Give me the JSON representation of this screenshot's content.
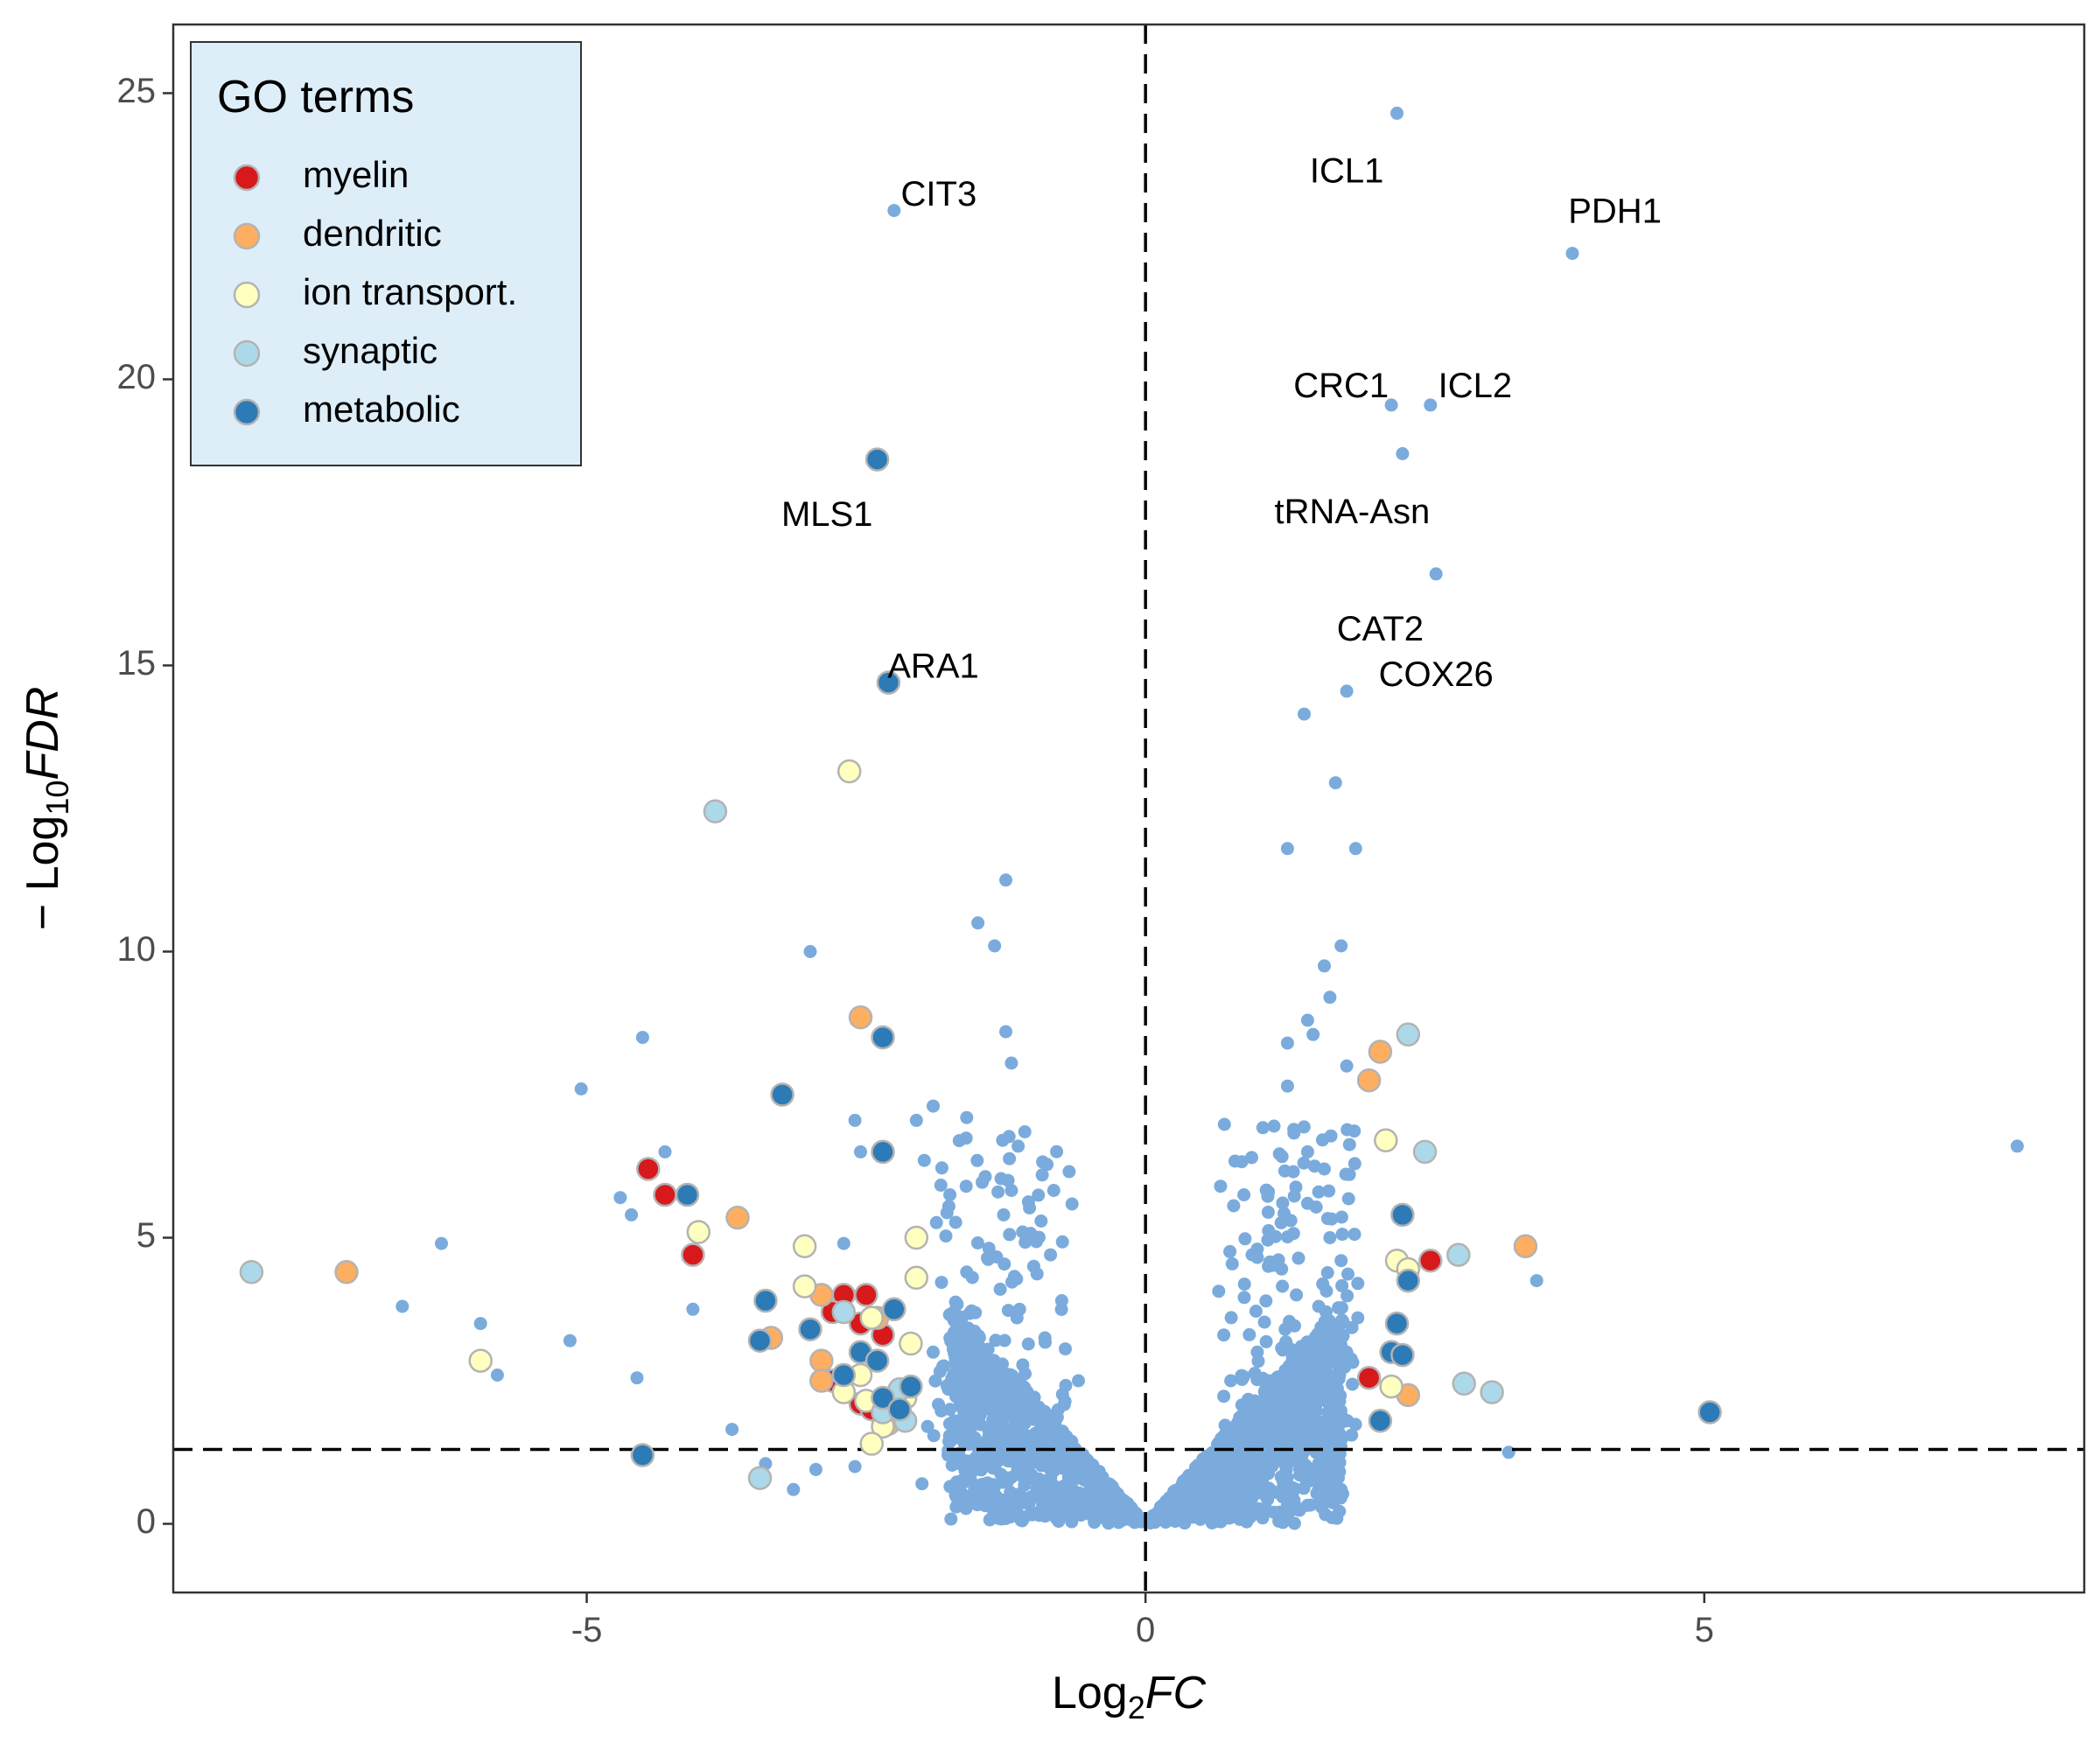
{
  "chart_data": {
    "type": "scatter",
    "title": "",
    "xlabel": {
      "base": "Log",
      "sub": "2",
      "italic": "FC"
    },
    "ylabel": {
      "prefix": "− Log",
      "sub": "10",
      "italic": "FDR"
    },
    "xlim": [
      -8.7,
      8.4
    ],
    "ylim": [
      -1.2,
      26.2
    ],
    "x_ticks": [
      -5,
      0,
      5
    ],
    "x_tick_labels": [
      "-5",
      "0",
      "5"
    ],
    "y_ticks": [
      0,
      5,
      10,
      15,
      20,
      25
    ],
    "y_tick_labels": [
      "0",
      "5",
      "10",
      "15",
      "20",
      "25"
    ],
    "grid": false,
    "thresholds": {
      "vertical_x": 0,
      "horizontal_y": 1.3
    },
    "legend": {
      "title": "GO terms",
      "position": "top-left",
      "background": "#ddeef8",
      "items": [
        {
          "name": "myelin",
          "color": "#d7191c"
        },
        {
          "name": "dendritic",
          "color": "#fdae61"
        },
        {
          "name": "ion transport.",
          "color": "#ffffbf"
        },
        {
          "name": "synaptic",
          "color": "#abd9e9"
        },
        {
          "name": "metabolic",
          "color": "#2c7bb6"
        }
      ]
    },
    "background_color": "#7aabdc",
    "background_points": [
      [
        2.25,
        24.65
      ],
      [
        -2.25,
        22.95
      ],
      [
        3.82,
        22.2
      ],
      [
        2.2,
        19.55
      ],
      [
        2.55,
        19.55
      ],
      [
        2.3,
        18.7
      ],
      [
        2.6,
        16.6
      ],
      [
        1.8,
        14.55
      ],
      [
        1.42,
        14.15
      ],
      [
        1.7,
        12.95
      ],
      [
        1.27,
        11.8
      ],
      [
        1.88,
        11.8
      ],
      [
        1.75,
        10.1
      ],
      [
        1.6,
        9.75
      ],
      [
        1.65,
        9.2
      ],
      [
        1.45,
        8.8
      ],
      [
        1.5,
        8.55
      ],
      [
        1.27,
        8.4
      ],
      [
        1.8,
        8.0
      ],
      [
        1.27,
        7.65
      ],
      [
        1.15,
        6.95
      ],
      [
        1.45,
        6.5
      ],
      [
        1.6,
        6.2
      ],
      [
        0.95,
        6.4
      ],
      [
        1.55,
        5.8
      ],
      [
        1.1,
        5.8
      ],
      [
        0.88,
        5.75
      ],
      [
        1.45,
        5.6
      ],
      [
        1.3,
        5.3
      ],
      [
        1.65,
        5.0
      ],
      [
        1.0,
        4.8
      ],
      [
        1.75,
        4.6
      ],
      [
        1.9,
        4.2
      ],
      [
        1.1,
        4.5
      ],
      [
        1.35,
        4.0
      ],
      [
        1.55,
        3.8
      ],
      [
        1.9,
        3.6
      ],
      [
        1.25,
        3.4
      ],
      [
        0.7,
        3.3
      ],
      [
        1.8,
        3.0
      ],
      [
        1.4,
        2.8
      ],
      [
        1.0,
        3.0
      ],
      [
        1.7,
        2.4
      ],
      [
        1.5,
        2.2
      ],
      [
        1.1,
        2.5
      ],
      [
        1.8,
        1.8
      ],
      [
        1.45,
        1.7
      ],
      [
        1.4,
        1.2
      ],
      [
        1.75,
        0.6
      ],
      [
        1.15,
        0.2
      ],
      [
        0.75,
        0.1
      ],
      [
        7.8,
        6.6
      ],
      [
        3.5,
        4.25
      ],
      [
        3.25,
        1.25
      ],
      [
        -1.25,
        11.25
      ],
      [
        -1.5,
        10.5
      ],
      [
        -1.35,
        10.1
      ],
      [
        -3.0,
        10.0
      ],
      [
        -1.25,
        8.6
      ],
      [
        -1.2,
        8.05
      ],
      [
        -1.9,
        7.3
      ],
      [
        -1.6,
        7.1
      ],
      [
        -2.6,
        7.05
      ],
      [
        -2.05,
        7.05
      ],
      [
        -1.08,
        6.85
      ],
      [
        -1.14,
        6.6
      ],
      [
        -2.55,
        6.5
      ],
      [
        -1.98,
        6.35
      ],
      [
        -1.23,
        6.0
      ],
      [
        -1.75,
        5.75
      ],
      [
        -1.32,
        5.8
      ],
      [
        -1.27,
        5.4
      ],
      [
        -4.5,
        8.5
      ],
      [
        -5.05,
        7.6
      ],
      [
        -4.3,
        6.5
      ],
      [
        -4.7,
        5.7
      ],
      [
        -4.6,
        5.4
      ],
      [
        -6.3,
        4.9
      ],
      [
        -6.65,
        3.8
      ],
      [
        -4.05,
        3.75
      ],
      [
        -5.95,
        3.5
      ],
      [
        -5.8,
        2.6
      ],
      [
        -5.15,
        3.2
      ],
      [
        -4.55,
        2.55
      ],
      [
        -3.7,
        1.65
      ],
      [
        -3.4,
        1.05
      ],
      [
        -2.95,
        0.95
      ],
      [
        -3.15,
        0.6
      ],
      [
        -2.7,
        4.9
      ],
      [
        -1.9,
        3.0
      ],
      [
        -1.5,
        3.2
      ],
      [
        -2.0,
        0.7
      ],
      [
        -1.7,
        0.5
      ],
      [
        -1.2,
        0.3
      ],
      [
        -0.8,
        0.1
      ],
      [
        -1.1,
        5.1
      ],
      [
        -1.0,
        4.5
      ],
      [
        -0.75,
        3.9
      ],
      [
        -0.6,
        2.5
      ],
      [
        -1.3,
        4.1
      ],
      [
        -0.85,
        4.7
      ],
      [
        -1.6,
        4.4
      ],
      [
        -1.15,
        3.6
      ],
      [
        -0.9,
        3.25
      ],
      [
        -1.75,
        2.0
      ],
      [
        -1.45,
        1.15
      ],
      [
        -2.6,
        1.0
      ],
      [
        -1.95,
        1.7
      ]
    ],
    "go_points": [
      {
        "term": "myelin",
        "points": [
          [
            -4.45,
            6.2
          ],
          [
            -4.3,
            5.75
          ],
          [
            -4.05,
            4.7
          ],
          [
            -2.7,
            4.0
          ],
          [
            -2.5,
            4.0
          ],
          [
            -2.8,
            3.7
          ],
          [
            -2.55,
            3.5
          ],
          [
            -2.35,
            3.3
          ],
          [
            -2.8,
            2.5
          ],
          [
            -2.55,
            2.1
          ],
          [
            -2.45,
            2.0
          ],
          [
            2.55,
            4.6
          ],
          [
            2.0,
            2.55
          ]
        ]
      },
      {
        "term": "dendritic",
        "points": [
          [
            -7.15,
            4.4
          ],
          [
            -3.65,
            5.35
          ],
          [
            -2.55,
            8.85
          ],
          [
            -3.35,
            3.25
          ],
          [
            -2.9,
            2.85
          ],
          [
            -2.9,
            2.5
          ],
          [
            -2.4,
            3.6
          ],
          [
            -2.3,
            1.75
          ],
          [
            2.1,
            8.25
          ],
          [
            2.0,
            7.75
          ],
          [
            3.4,
            4.85
          ],
          [
            2.35,
            2.25
          ],
          [
            -2.9,
            4.0
          ]
        ]
      },
      {
        "term": "ion transport.",
        "points": [
          [
            -2.65,
            13.15
          ],
          [
            -4.0,
            5.1
          ],
          [
            -3.05,
            4.85
          ],
          [
            -2.05,
            5.0
          ],
          [
            -3.05,
            4.15
          ],
          [
            -2.05,
            4.3
          ],
          [
            -2.45,
            3.6
          ],
          [
            -2.1,
            3.15
          ],
          [
            -5.95,
            2.85
          ],
          [
            -2.7,
            2.3
          ],
          [
            -2.5,
            2.15
          ],
          [
            -2.25,
            2.05
          ],
          [
            -2.35,
            1.7
          ],
          [
            -2.45,
            1.4
          ],
          [
            2.15,
            6.7
          ],
          [
            2.25,
            4.6
          ],
          [
            2.35,
            4.45
          ],
          [
            2.2,
            2.4
          ],
          [
            -2.55,
            2.6
          ],
          [
            -2.15,
            2.2
          ]
        ]
      },
      {
        "term": "synaptic",
        "points": [
          [
            -8.0,
            4.4
          ],
          [
            -3.85,
            12.45
          ],
          [
            -2.7,
            3.7
          ],
          [
            -3.45,
            0.8
          ],
          [
            2.35,
            8.55
          ],
          [
            2.5,
            6.5
          ],
          [
            2.8,
            4.7
          ],
          [
            2.85,
            2.45
          ],
          [
            3.1,
            2.3
          ],
          [
            -2.2,
            2.35
          ],
          [
            -2.35,
            1.95
          ],
          [
            -2.15,
            1.8
          ]
        ]
      },
      {
        "term": "metabolic",
        "points": [
          [
            -2.4,
            18.6
          ],
          [
            -2.3,
            14.7
          ],
          [
            -2.35,
            8.5
          ],
          [
            -3.25,
            7.5
          ],
          [
            -2.35,
            6.5
          ],
          [
            -4.1,
            5.75
          ],
          [
            -3.4,
            3.9
          ],
          [
            -3.45,
            3.2
          ],
          [
            -3.0,
            3.4
          ],
          [
            -2.25,
            3.75
          ],
          [
            -2.55,
            3.0
          ],
          [
            -2.4,
            2.85
          ],
          [
            -2.1,
            2.4
          ],
          [
            -2.35,
            2.2
          ],
          [
            -4.5,
            1.2
          ],
          [
            2.3,
            5.4
          ],
          [
            2.35,
            4.25
          ],
          [
            2.25,
            3.5
          ],
          [
            2.2,
            3.0
          ],
          [
            2.3,
            2.95
          ],
          [
            2.1,
            1.8
          ],
          [
            5.05,
            1.95
          ],
          [
            -2.7,
            2.6
          ],
          [
            -2.2,
            2.0
          ]
        ]
      }
    ],
    "annotations": [
      {
        "text": "ICL1",
        "x": 1.8,
        "y": 23.6
      },
      {
        "text": "CIT3",
        "x": -1.85,
        "y": 23.2
      },
      {
        "text": "PDH1",
        "x": 4.2,
        "y": 22.9
      },
      {
        "text": "CRC1",
        "x": 1.75,
        "y": 19.85
      },
      {
        "text": "ICL2",
        "x": 2.95,
        "y": 19.85
      },
      {
        "text": "tRNA-Asn",
        "x": 1.85,
        "y": 17.65
      },
      {
        "text": "MLS1",
        "x": -2.85,
        "y": 17.6
      },
      {
        "text": "CAT2",
        "x": 2.1,
        "y": 15.6
      },
      {
        "text": "ARA1",
        "x": -1.9,
        "y": 14.95
      },
      {
        "text": "COX26",
        "x": 2.6,
        "y": 14.8
      }
    ]
  }
}
